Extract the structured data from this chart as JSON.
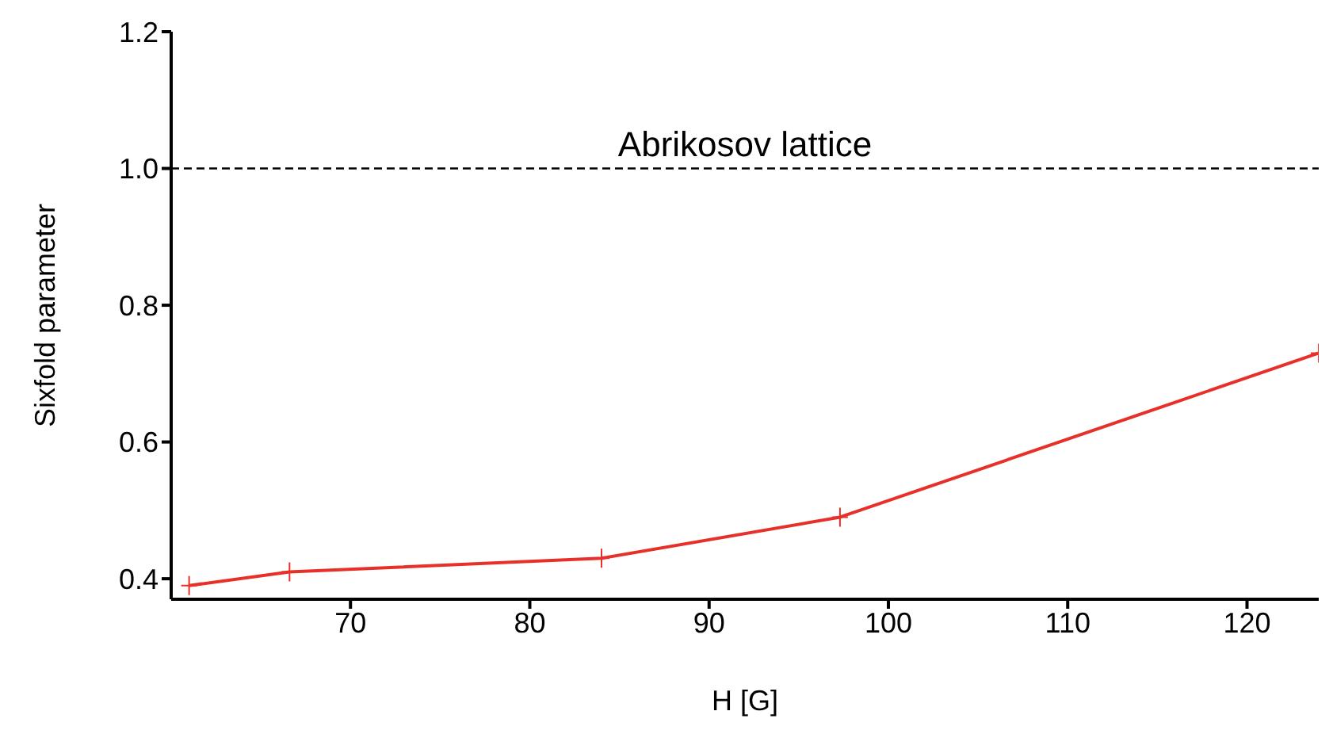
{
  "chart_data": {
    "type": "line",
    "xlabel": "H [G]",
    "ylabel": "Sixfold parameter",
    "x": [
      61,
      66.6,
      84,
      97.3,
      124
    ],
    "series": [
      {
        "color": "#e8302a",
        "values": [
          0.39,
          0.41,
          0.43,
          0.49,
          0.73
        ]
      }
    ],
    "xlim": [
      60,
      124
    ],
    "xticks": [
      70,
      80,
      90,
      100,
      110,
      120
    ],
    "ylim": [
      0.37,
      1.2
    ],
    "yticks": [
      0.4,
      0.6,
      0.8,
      {
        "value": 1,
        "label": "1.0"
      },
      1.2
    ],
    "ref_lines": [
      {
        "axis": "y",
        "value": 1.0,
        "label": "Abrikosov lattice",
        "color": "#000000",
        "line_style": "dashed"
      }
    ],
    "grid": false,
    "legend": false,
    "marker": "cross",
    "line_style": "solid"
  }
}
